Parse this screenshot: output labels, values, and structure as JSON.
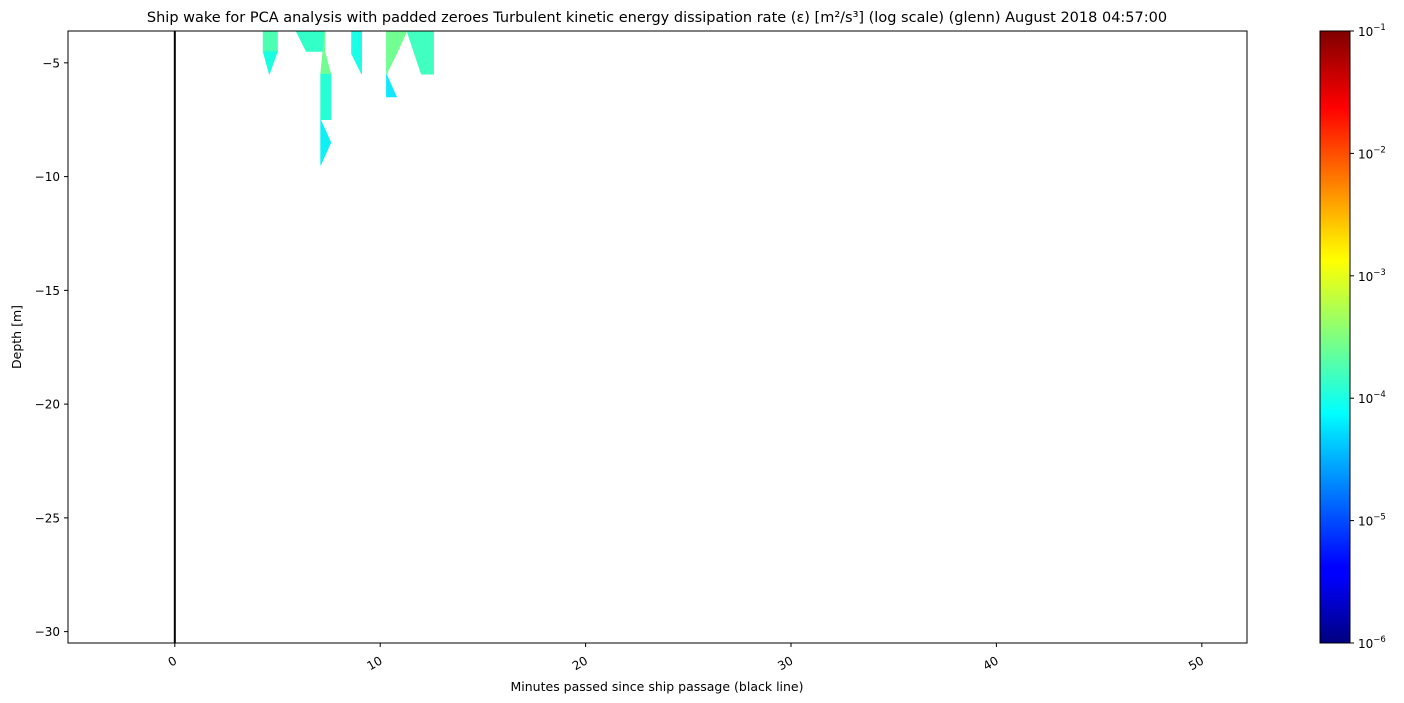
{
  "chart_data": {
    "type": "contourf",
    "title": "Ship wake for PCA analysis with padded zeroes Turbulent kinetic energy dissipation rate (ε) [m²/s³] (log scale) (glenn) August 2018 04:57:00",
    "xlabel": "Minutes passed since ship passage (black line)",
    "ylabel": "Depth [m]",
    "xlim": [
      -5.2,
      52.2
    ],
    "ylim": [
      -30.5,
      -3.6
    ],
    "x_ticks": [
      0,
      10,
      20,
      30,
      40,
      50
    ],
    "x_tick_labels": [
      "0",
      "10",
      "20",
      "30",
      "40",
      "50"
    ],
    "y_ticks": [
      -5,
      -10,
      -15,
      -20,
      -25,
      -30
    ],
    "y_tick_labels": [
      "−5",
      "−10",
      "−15",
      "−20",
      "−25",
      "−30"
    ],
    "ship_passage_x": 0,
    "grid": false,
    "colorbar": {
      "colormap": "jet",
      "scale": "log",
      "range": [
        1e-06,
        0.1
      ],
      "tick_values": [
        1e-06,
        1e-05,
        0.0001,
        0.001,
        0.01,
        0.1
      ],
      "tick_labels": [
        {
          "base": "10",
          "exp": "−6"
        },
        {
          "base": "10",
          "exp": "−5"
        },
        {
          "base": "10",
          "exp": "−4"
        },
        {
          "base": "10",
          "exp": "−3"
        },
        {
          "base": "10",
          "exp": "−2"
        },
        {
          "base": "10",
          "exp": "−1"
        }
      ]
    },
    "regions": [
      {
        "value": 0.00015,
        "color": "#4dffb0",
        "points": [
          [
            4.3,
            -3.6
          ],
          [
            5.0,
            -3.6
          ],
          [
            5.0,
            -4.5
          ],
          [
            4.3,
            -4.5
          ]
        ]
      },
      {
        "value": 8e-05,
        "color": "#1affe0",
        "points": [
          [
            4.3,
            -4.5
          ],
          [
            5.0,
            -4.5
          ],
          [
            4.6,
            -5.5
          ]
        ]
      },
      {
        "value": 0.00012,
        "color": "#33ffc8",
        "points": [
          [
            5.9,
            -3.6
          ],
          [
            7.3,
            -3.6
          ],
          [
            7.3,
            -4.5
          ],
          [
            6.4,
            -4.5
          ]
        ]
      },
      {
        "value": 0.00025,
        "color": "#70ff90",
        "points": [
          [
            7.3,
            -3.6
          ],
          [
            7.3,
            -4.5
          ],
          [
            7.6,
            -5.5
          ],
          [
            7.1,
            -5.5
          ]
        ]
      },
      {
        "value": 0.0001,
        "color": "#26ffd5",
        "points": [
          [
            7.1,
            -5.5
          ],
          [
            7.6,
            -5.5
          ],
          [
            7.6,
            -7.5
          ],
          [
            7.1,
            -7.5
          ]
        ]
      },
      {
        "value": 7e-05,
        "color": "#0ff0f5",
        "points": [
          [
            7.1,
            -7.5
          ],
          [
            7.6,
            -8.5
          ],
          [
            7.1,
            -9.5
          ]
        ]
      },
      {
        "value": 0.0001,
        "color": "#1affe8",
        "points": [
          [
            8.6,
            -3.6
          ],
          [
            9.1,
            -3.6
          ],
          [
            9.1,
            -5.5
          ],
          [
            8.6,
            -4.6
          ]
        ]
      },
      {
        "value": 0.0003,
        "color": "#70ff90",
        "points": [
          [
            10.3,
            -3.6
          ],
          [
            11.3,
            -3.6
          ],
          [
            10.8,
            -4.6
          ],
          [
            10.3,
            -5.5
          ]
        ]
      },
      {
        "value": 7e-05,
        "color": "#0fe8ff",
        "points": [
          [
            10.3,
            -5.5
          ],
          [
            10.8,
            -6.5
          ],
          [
            10.3,
            -6.5
          ]
        ]
      },
      {
        "value": 0.00015,
        "color": "#40ffc0",
        "points": [
          [
            11.3,
            -3.6
          ],
          [
            12.6,
            -3.6
          ],
          [
            12.6,
            -5.5
          ],
          [
            12.0,
            -5.5
          ]
        ]
      }
    ]
  }
}
